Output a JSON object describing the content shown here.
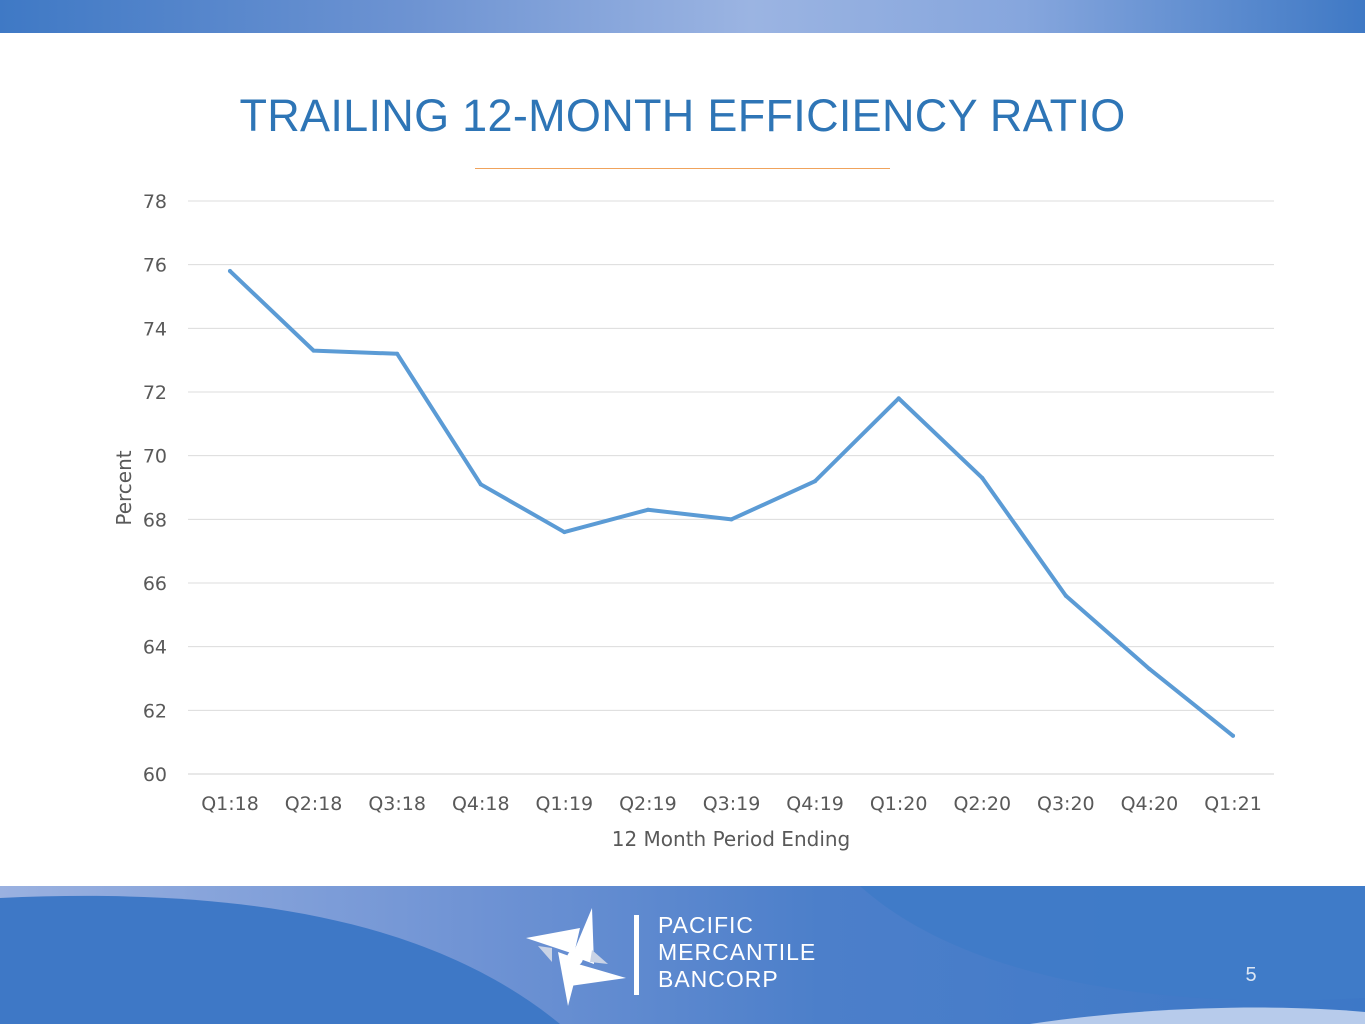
{
  "slide": {
    "title": "TRAILING 12-MONTH EFFICIENCY RATIO",
    "page_number": "5",
    "accent_color": "#2e75b6",
    "rule_color": "#f0a35c"
  },
  "logo": {
    "lines": [
      "PACIFIC",
      "MERCANTILE",
      "BANCORP"
    ],
    "icon": "pinwheel-logo-icon"
  },
  "chart_data": {
    "type": "line",
    "title": "",
    "xlabel": "12 Month Period Ending",
    "ylabel": "Percent",
    "ylim": [
      60,
      78
    ],
    "yticks": [
      60,
      62,
      64,
      66,
      68,
      70,
      72,
      74,
      76,
      78
    ],
    "grid": true,
    "legend": "none",
    "line_color": "#5b9bd5",
    "categories": [
      "Q1:18",
      "Q2:18",
      "Q3:18",
      "Q4:18",
      "Q1:19",
      "Q2:19",
      "Q3:19",
      "Q4:19",
      "Q1:20",
      "Q2:20",
      "Q3:20",
      "Q4:20",
      "Q1:21"
    ],
    "series": [
      {
        "values": [
          75.8,
          73.3,
          73.2,
          69.1,
          67.6,
          68.3,
          68.0,
          69.2,
          71.8,
          69.3,
          65.6,
          63.3,
          61.2
        ]
      }
    ]
  }
}
